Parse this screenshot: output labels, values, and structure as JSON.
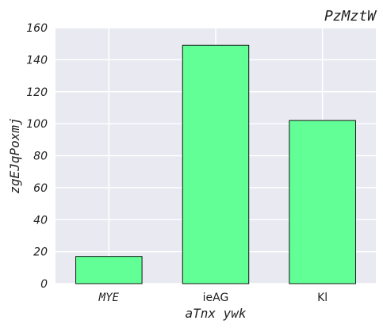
{
  "chart_data": {
    "type": "bar",
    "title": "PzMztW",
    "xlabel": "aTnx ywk",
    "ylabel": "zgEJqPoxmj",
    "categories": [
      "MYE",
      "ieAG",
      "Kl"
    ],
    "values": [
      17,
      149,
      102
    ],
    "ylim": [
      0,
      160
    ],
    "yticks": [
      0,
      20,
      40,
      60,
      80,
      100,
      120,
      140,
      160
    ],
    "grid": true,
    "bar_color": "#61ff96",
    "edge_color": "#000000",
    "background": "#e8e9f1"
  }
}
